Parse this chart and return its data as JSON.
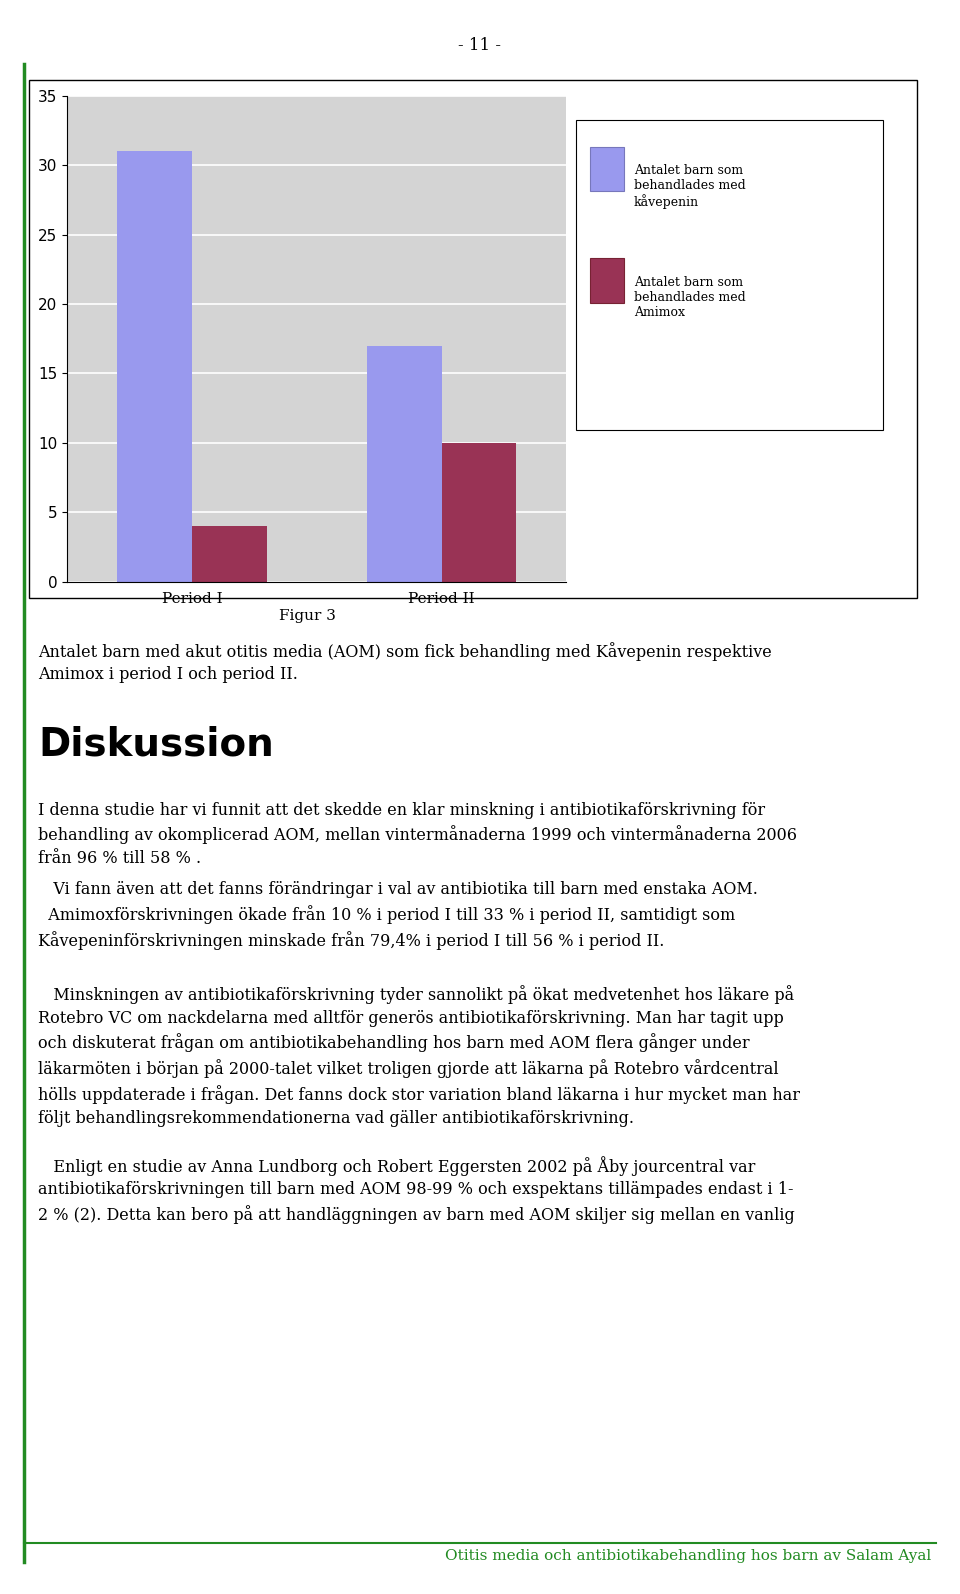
{
  "page_number": "- 11 -",
  "chart": {
    "categories": [
      "Period I",
      "Period II"
    ],
    "kavepenin_values": [
      31,
      17
    ],
    "amimox_values": [
      4,
      10
    ],
    "kavepenin_color": "#9999EE",
    "amimox_color": "#993355",
    "ylim": [
      0,
      35
    ],
    "yticks": [
      0,
      5,
      10,
      15,
      20,
      25,
      30,
      35
    ],
    "background_color": "#d4d4d4",
    "legend_kavepenin": "Antalet barn som\nbehandlades med\nkåvepenin",
    "legend_amimox": "Antalet barn som\nbehandlades med\nAmimox"
  },
  "figur_caption": "Figur 3",
  "figur_text": "Antalet barn med akut otitis media (AOM) som fick behandling med Kåvepenin respektive\nAmimox i period I och period II.",
  "section_title": "Diskussion",
  "paragraphs": [
    "I denna studie har vi funnit att det skedde en klar minskning i antibiotikaförskrivning för\nbehandling av okomplicerad AOM, mellan vintermånaderna 1999 och vintermånaderna 2006\nfrån 96 % till 58 % .",
    "   Vi fann även att det fanns förändringar i val av antibiotika till barn med enstaka AOM.\n  Amimoxförskrivningen ökade från 10 % i period I till 33 % i period II, samtidigt som\nKåvepeninförskrivningen minskade från 79,4% i period I till 56 % i period II.",
    "   Minskningen av antibiotikaförskrivning tyder sannolikt på ökat medvetenhet hos läkare på\nRotebro VC om nackdelarna med alltför generös antibiotikaförskrivning. Man har tagit upp\noch diskuterat frågan om antibiotikabehandling hos barn med AOM flera gånger under\nläkarmöten i början på 2000-talet vilket troligen gjorde att läkarna på Rotebro vårdcentral\nhölls uppdaterade i frågan. Det fanns dock stor variation bland läkarna i hur mycket man har\nföljt behandlingsrekommendationerna vad gäller antibiotikaförskrivning.",
    "   Enligt en studie av Anna Lundborg och Robert Eggersten 2002 på Åby jourcentral var\nantibiotikaförskrivningen till barn med AOM 98-99 % och exspektans tillämpades endast i 1-\n2 % (2). Detta kan bero på att handläggningen av barn med AOM skiljer sig mellan en vanlig"
  ],
  "footer_text": "Otitis media och antibiotikabehandling hos barn av Salam Ayal",
  "footer_color": "#228B22",
  "left_border_color": "#228B22"
}
